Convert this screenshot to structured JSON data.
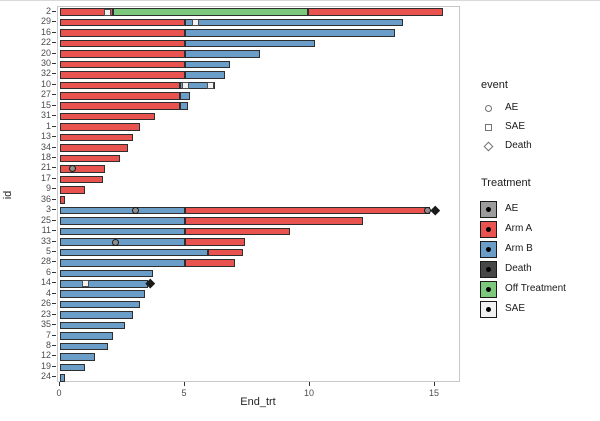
{
  "chart_data": {
    "type": "bar",
    "subtype": "swimmer-plot",
    "orientation": "horizontal",
    "stacked": true,
    "title": "",
    "xlabel": "End_trt",
    "ylabel": "id",
    "xlim": [
      0,
      16
    ],
    "x_ticks": [
      "0",
      "5",
      "10",
      "15"
    ],
    "x_tick_values": [
      0,
      5,
      10,
      15
    ],
    "grid": false,
    "colors": {
      "Arm A": "#e8534f",
      "Arm B": "#6b9dc9",
      "Off Treatment": "#7cc87c"
    },
    "marker_colors": {
      "AE": "#8f8f8f",
      "SAE": "#f2f2f2",
      "Death": "#1a1a1a"
    },
    "legend": {
      "event": {
        "title": "event",
        "items": [
          {
            "label": "AE",
            "shape": "circle"
          },
          {
            "label": "SAE",
            "shape": "square"
          },
          {
            "label": "Death",
            "shape": "diamond"
          }
        ]
      },
      "treatment": {
        "title": "Treatment",
        "items": [
          {
            "label": "AE",
            "color": "#9c9c9c"
          },
          {
            "label": "Arm A",
            "color": "#e8534f"
          },
          {
            "label": "Arm B",
            "color": "#6b9dc9"
          },
          {
            "label": "Death",
            "color": "#474747"
          },
          {
            "label": "Off Treatment",
            "color": "#7cc87c"
          },
          {
            "label": "SAE",
            "color": "#f2f2f2"
          }
        ]
      }
    },
    "rows": [
      {
        "id": "2",
        "segments": [
          {
            "treatment": "Arm A",
            "start": 0,
            "end": 2.1
          },
          {
            "treatment": "Off Treatment",
            "start": 2.1,
            "end": 9.9
          },
          {
            "treatment": "Arm A",
            "start": 9.9,
            "end": 15.3
          }
        ],
        "markers": [
          {
            "event": "SAE",
            "x": 1.9
          }
        ]
      },
      {
        "id": "29",
        "segments": [
          {
            "treatment": "Arm A",
            "start": 0,
            "end": 5
          },
          {
            "treatment": "Arm B",
            "start": 5,
            "end": 13.7
          }
        ],
        "markers": [
          {
            "event": "SAE",
            "x": 5.4
          }
        ]
      },
      {
        "id": "16",
        "segments": [
          {
            "treatment": "Arm A",
            "start": 0,
            "end": 5
          },
          {
            "treatment": "Arm B",
            "start": 5,
            "end": 13.4
          }
        ],
        "markers": []
      },
      {
        "id": "22",
        "segments": [
          {
            "treatment": "Arm A",
            "start": 0,
            "end": 5
          },
          {
            "treatment": "Arm B",
            "start": 5,
            "end": 10.2
          }
        ],
        "markers": []
      },
      {
        "id": "20",
        "segments": [
          {
            "treatment": "Arm A",
            "start": 0,
            "end": 5
          },
          {
            "treatment": "Arm B",
            "start": 5,
            "end": 8
          }
        ],
        "markers": []
      },
      {
        "id": "30",
        "segments": [
          {
            "treatment": "Arm A",
            "start": 0,
            "end": 5
          },
          {
            "treatment": "Arm B",
            "start": 5,
            "end": 6.8
          }
        ],
        "markers": []
      },
      {
        "id": "32",
        "segments": [
          {
            "treatment": "Arm A",
            "start": 0,
            "end": 5
          },
          {
            "treatment": "Arm B",
            "start": 5,
            "end": 6.6
          }
        ],
        "markers": []
      },
      {
        "id": "10",
        "segments": [
          {
            "treatment": "Arm A",
            "start": 0,
            "end": 4.8
          },
          {
            "treatment": "Arm B",
            "start": 4.8,
            "end": 6.2
          }
        ],
        "markers": [
          {
            "event": "SAE",
            "x": 5.0
          },
          {
            "event": "SAE",
            "x": 6.0
          }
        ]
      },
      {
        "id": "27",
        "segments": [
          {
            "treatment": "Arm A",
            "start": 0,
            "end": 4.8
          },
          {
            "treatment": "Arm B",
            "start": 4.8,
            "end": 5.2
          }
        ],
        "markers": []
      },
      {
        "id": "15",
        "segments": [
          {
            "treatment": "Arm A",
            "start": 0,
            "end": 4.8
          },
          {
            "treatment": "Arm B",
            "start": 4.8,
            "end": 5.1
          }
        ],
        "markers": []
      },
      {
        "id": "31",
        "segments": [
          {
            "treatment": "Arm A",
            "start": 0,
            "end": 3.8
          }
        ],
        "markers": []
      },
      {
        "id": "1",
        "segments": [
          {
            "treatment": "Arm A",
            "start": 0,
            "end": 3.2
          }
        ],
        "markers": []
      },
      {
        "id": "13",
        "segments": [
          {
            "treatment": "Arm A",
            "start": 0,
            "end": 2.9
          }
        ],
        "markers": []
      },
      {
        "id": "34",
        "segments": [
          {
            "treatment": "Arm A",
            "start": 0,
            "end": 2.7
          }
        ],
        "markers": []
      },
      {
        "id": "18",
        "segments": [
          {
            "treatment": "Arm A",
            "start": 0,
            "end": 2.4
          }
        ],
        "markers": []
      },
      {
        "id": "21",
        "segments": [
          {
            "treatment": "Arm A",
            "start": 0,
            "end": 1.8
          }
        ],
        "markers": [
          {
            "event": "AE",
            "x": 0.5
          }
        ]
      },
      {
        "id": "17",
        "segments": [
          {
            "treatment": "Arm A",
            "start": 0,
            "end": 1.7
          }
        ],
        "markers": []
      },
      {
        "id": "9",
        "segments": [
          {
            "treatment": "Arm A",
            "start": 0,
            "end": 1.0
          }
        ],
        "markers": []
      },
      {
        "id": "36",
        "segments": [
          {
            "treatment": "Arm A",
            "start": 0,
            "end": 0.2
          }
        ],
        "markers": []
      },
      {
        "id": "3",
        "segments": [
          {
            "treatment": "Arm B",
            "start": 0,
            "end": 5
          },
          {
            "treatment": "Arm A",
            "start": 5,
            "end": 14.8
          }
        ],
        "markers": [
          {
            "event": "AE",
            "x": 3.0
          },
          {
            "event": "AE",
            "x": 14.7
          },
          {
            "event": "Death",
            "x": 15.0
          }
        ]
      },
      {
        "id": "25",
        "segments": [
          {
            "treatment": "Arm B",
            "start": 0,
            "end": 5
          },
          {
            "treatment": "Arm A",
            "start": 5,
            "end": 12.1
          }
        ],
        "markers": []
      },
      {
        "id": "11",
        "segments": [
          {
            "treatment": "Arm B",
            "start": 0,
            "end": 5
          },
          {
            "treatment": "Arm A",
            "start": 5,
            "end": 9.2
          }
        ],
        "markers": []
      },
      {
        "id": "33",
        "segments": [
          {
            "treatment": "Arm B",
            "start": 0,
            "end": 5
          },
          {
            "treatment": "Arm A",
            "start": 5,
            "end": 7.4
          }
        ],
        "markers": [
          {
            "event": "AE",
            "x": 2.2
          }
        ]
      },
      {
        "id": "5",
        "segments": [
          {
            "treatment": "Arm B",
            "start": 0,
            "end": 5.9
          },
          {
            "treatment": "Arm A",
            "start": 5.9,
            "end": 7.3
          }
        ],
        "markers": []
      },
      {
        "id": "28",
        "segments": [
          {
            "treatment": "Arm B",
            "start": 0,
            "end": 5
          },
          {
            "treatment": "Arm A",
            "start": 5,
            "end": 7.0
          }
        ],
        "markers": []
      },
      {
        "id": "6",
        "segments": [
          {
            "treatment": "Arm B",
            "start": 0,
            "end": 3.7
          }
        ],
        "markers": []
      },
      {
        "id": "14",
        "segments": [
          {
            "treatment": "Arm B",
            "start": 0,
            "end": 3.5
          }
        ],
        "markers": [
          {
            "event": "SAE",
            "x": 1.0
          },
          {
            "event": "Death",
            "x": 3.6
          }
        ]
      },
      {
        "id": "4",
        "segments": [
          {
            "treatment": "Arm B",
            "start": 0,
            "end": 3.4
          }
        ],
        "markers": []
      },
      {
        "id": "26",
        "segments": [
          {
            "treatment": "Arm B",
            "start": 0,
            "end": 3.2
          }
        ],
        "markers": []
      },
      {
        "id": "23",
        "segments": [
          {
            "treatment": "Arm B",
            "start": 0,
            "end": 2.9
          }
        ],
        "markers": []
      },
      {
        "id": "35",
        "segments": [
          {
            "treatment": "Arm B",
            "start": 0,
            "end": 2.6
          }
        ],
        "markers": []
      },
      {
        "id": "7",
        "segments": [
          {
            "treatment": "Arm B",
            "start": 0,
            "end": 2.1
          }
        ],
        "markers": []
      },
      {
        "id": "8",
        "segments": [
          {
            "treatment": "Arm B",
            "start": 0,
            "end": 1.9
          }
        ],
        "markers": []
      },
      {
        "id": "12",
        "segments": [
          {
            "treatment": "Arm B",
            "start": 0,
            "end": 1.4
          }
        ],
        "markers": []
      },
      {
        "id": "19",
        "segments": [
          {
            "treatment": "Arm B",
            "start": 0,
            "end": 1.0
          }
        ],
        "markers": []
      },
      {
        "id": "24",
        "segments": [
          {
            "treatment": "Arm B",
            "start": 0,
            "end": 0.2
          }
        ],
        "markers": []
      }
    ]
  }
}
